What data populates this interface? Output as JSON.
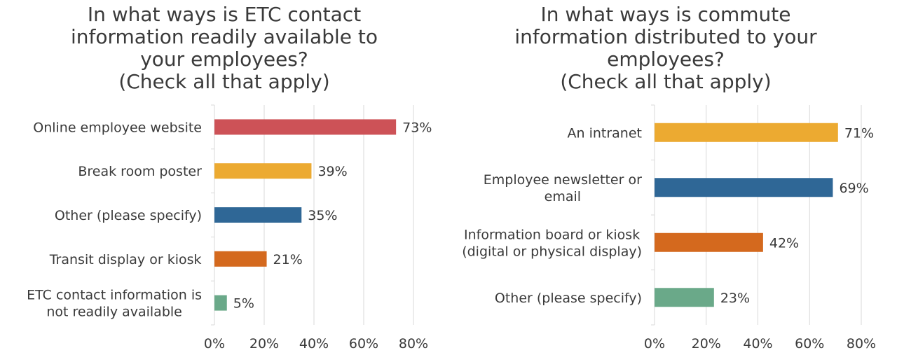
{
  "charts": [
    {
      "title_lines": [
        "In what ways is ETC contact",
        "information readily available to",
        "your employees?",
        "(Check all that apply)"
      ],
      "chart_data": {
        "type": "bar",
        "orientation": "horizontal",
        "categories": [
          [
            "Online employee website"
          ],
          [
            "Break room poster"
          ],
          [
            "Other (please specify)"
          ],
          [
            "Transit display or kiosk"
          ],
          [
            "ETC contact information is",
            "not readily available"
          ]
        ],
        "values": [
          73,
          39,
          35,
          21,
          5
        ],
        "value_labels": [
          "73%",
          "39%",
          "35%",
          "21%",
          "5%"
        ],
        "colors": [
          "#cd5257",
          "#ecaa31",
          "#2f6796",
          "#d4691e",
          "#6aa989"
        ],
        "xlim": [
          0,
          80
        ],
        "xticks": [
          "0%",
          "20%",
          "40%",
          "60%",
          "80%"
        ],
        "grid": true
      }
    },
    {
      "title_lines": [
        "In what ways is commute",
        "information distributed to your",
        "employees?",
        "(Check all that apply)"
      ],
      "chart_data": {
        "type": "bar",
        "orientation": "horizontal",
        "categories": [
          [
            "An intranet"
          ],
          [
            "Employee newsletter or",
            "email"
          ],
          [
            "Information board or kiosk",
            "(digital or physical display)"
          ],
          [
            "Other (please specify)"
          ]
        ],
        "values": [
          71,
          69,
          42,
          23
        ],
        "value_labels": [
          "71%",
          "69%",
          "42%",
          "23%"
        ],
        "colors": [
          "#ecaa31",
          "#2f6796",
          "#d4691e",
          "#6aa989"
        ],
        "xlim": [
          0,
          80
        ],
        "xticks": [
          "0%",
          "20%",
          "40%",
          "60%",
          "80%"
        ],
        "grid": true
      }
    }
  ]
}
